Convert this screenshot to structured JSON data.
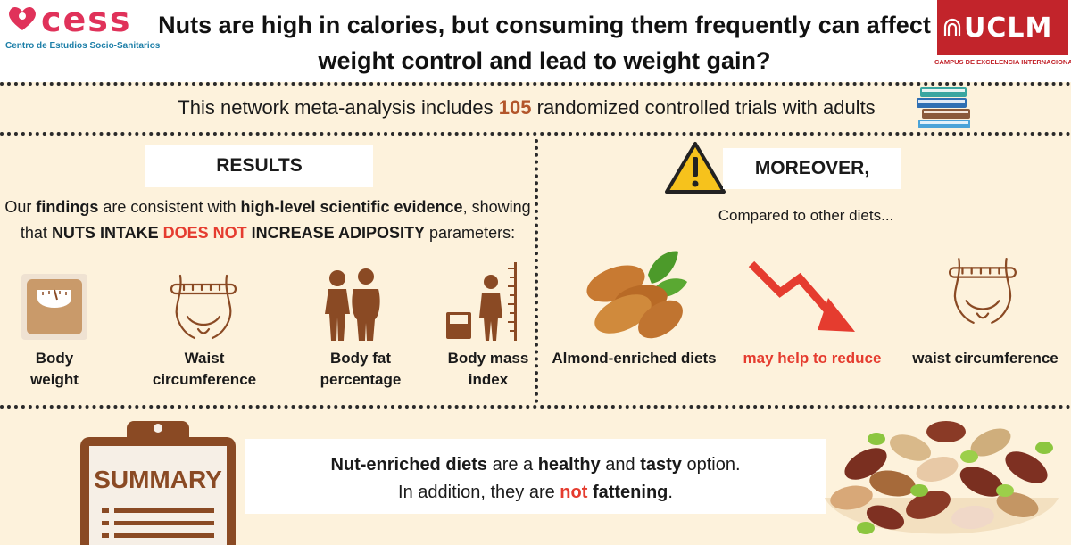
{
  "header": {
    "cess_logo_text": "cess",
    "cess_subtitle": "Centro de Estudios Socio-Sanitarios",
    "title": "Nuts are high in calories, but consuming them frequently can affect weight control and lead to weight gain?",
    "uclm_logo_text": "UCLM",
    "uclm_subtitle": "CAMPUS DE EXCELENCIA INTERNACIONAL"
  },
  "meta": {
    "prefix": "This network meta-analysis includes ",
    "count": "105",
    "suffix": " randomized controlled trials with adults"
  },
  "results": {
    "heading": "RESULTS",
    "text_1": "Our ",
    "text_findings": "findings",
    "text_2": " are consistent with ",
    "text_high_level": "high-level scientific evidence",
    "text_3": ", showing that ",
    "text_nuts_intake": "NUTS INTAKE",
    "text_does_not": "DOES NOT",
    "text_increase": "INCREASE ADIPOSITY",
    "text_4": " parameters:",
    "items": [
      {
        "label_line1": "Body",
        "label_line2": "weight",
        "icon": "scale-icon"
      },
      {
        "label_line1": "Waist",
        "label_line2": "circumference",
        "icon": "waist-icon"
      },
      {
        "label_line1": "Body fat",
        "label_line2": "percentage",
        "icon": "body-fat-icon"
      },
      {
        "label_line1": "Body mass",
        "label_line2": "index",
        "icon": "bmi-icon"
      }
    ]
  },
  "moreover": {
    "heading": "MOREOVER,",
    "compared": "Compared to other diets...",
    "item_almond": "Almond-enriched diets",
    "item_reduce": "may help to reduce",
    "item_waist": "waist circumference"
  },
  "summary": {
    "clipboard_label": "SUMMARY",
    "line1_bold1": "Nut-enriched diets",
    "line1_mid": " are a ",
    "line1_bold2": "healthy",
    "line1_and": " and ",
    "line1_bold3": "tasty",
    "line1_end": " option.",
    "line2_start": "In addition, they are ",
    "line2_not": "not",
    "line2_space": " ",
    "line2_fattening": "fattening",
    "line2_end": "."
  },
  "colors": {
    "background": "#fdf2dc",
    "accent_red": "#e53c2f",
    "brown": "#8a4a24",
    "count_color": "#b3562b",
    "uclm_red": "#c2242b",
    "cess_pink": "#e0325a"
  }
}
